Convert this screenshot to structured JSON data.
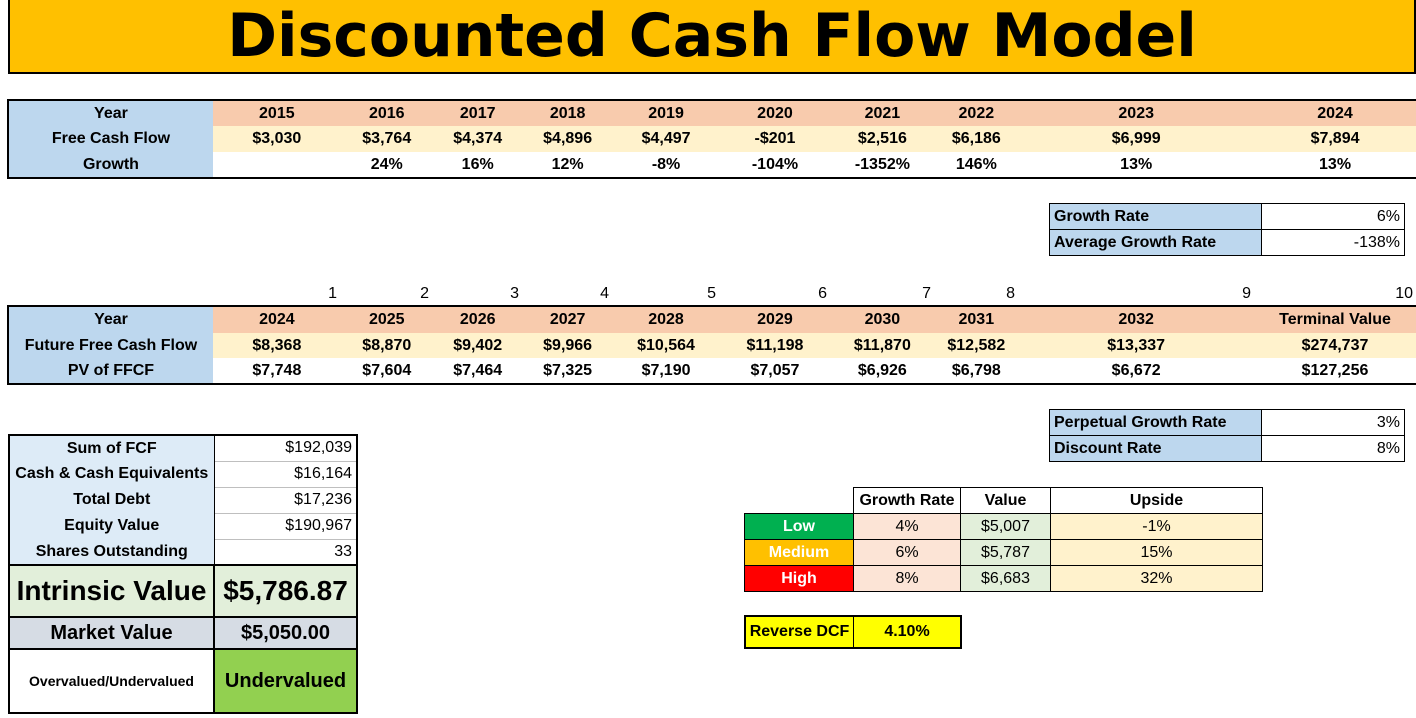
{
  "title": "Discounted Cash Flow Model",
  "historical": {
    "year_label": "Year",
    "fcf_label": "Free Cash Flow",
    "growth_label": "Growth",
    "years": [
      "2015",
      "2016",
      "2017",
      "2018",
      "2019",
      "2020",
      "2021",
      "2022",
      "2023",
      "2024"
    ],
    "fcf": [
      "$3,030",
      "$3,764",
      "$4,374",
      "$4,896",
      "$4,497",
      "-$201",
      "$2,516",
      "$6,186",
      "$6,999",
      "$7,894"
    ],
    "growth": [
      "",
      "24%",
      "16%",
      "12%",
      "-8%",
      "-104%",
      "-1352%",
      "146%",
      "13%",
      "13%"
    ]
  },
  "growth_box": {
    "growth_rate_label": "Growth Rate",
    "growth_rate": "6%",
    "avg_growth_label": "Average Growth Rate",
    "avg_growth": "-138%"
  },
  "projection": {
    "indices": [
      "1",
      "2",
      "3",
      "4",
      "5",
      "6",
      "7",
      "8",
      "9",
      "10"
    ],
    "year_label": "Year",
    "ffcf_label": "Future Free Cash Flow",
    "pv_label": "PV of FFCF",
    "years": [
      "2024",
      "2025",
      "2026",
      "2027",
      "2028",
      "2029",
      "2030",
      "2031",
      "2032",
      "Terminal Value"
    ],
    "ffcf": [
      "$8,368",
      "$8,870",
      "$9,402",
      "$9,966",
      "$10,564",
      "$11,198",
      "$11,870",
      "$12,582",
      "$13,337",
      "$274,737"
    ],
    "pv": [
      "$7,748",
      "$7,604",
      "$7,464",
      "$7,325",
      "$7,190",
      "$7,057",
      "$6,926",
      "$6,798",
      "$6,672",
      "$127,256"
    ]
  },
  "rates_box": {
    "perpetual_label": "Perpetual Growth Rate",
    "perpetual": "3%",
    "discount_label": "Discount Rate",
    "discount": "8%"
  },
  "summary": {
    "sum_fcf_label": "Sum of FCF",
    "sum_fcf": "$192,039",
    "cash_label": "Cash & Cash Equivalents",
    "cash": "$16,164",
    "debt_label": "Total Debt",
    "debt": "$17,236",
    "equity_label": "Equity Value",
    "equity": "$190,967",
    "shares_label": "Shares Outstanding",
    "shares": "33",
    "intrinsic_label": "Intrinsic Value",
    "intrinsic": "$5,786.87",
    "market_label": "Market Value",
    "market": "$5,050.00",
    "verdict_label": "Overvalued/Undervalued",
    "verdict": "Undervalued"
  },
  "scenarios": {
    "headers": [
      "Growth Rate",
      "Value",
      "Upside"
    ],
    "rows": [
      {
        "name": "Low",
        "growth": "4%",
        "value": "$5,007",
        "upside": "-1%"
      },
      {
        "name": "Medium",
        "growth": "6%",
        "value": "$5,787",
        "upside": "15%"
      },
      {
        "name": "High",
        "growth": "8%",
        "value": "$6,683",
        "upside": "32%"
      }
    ]
  },
  "reverse_dcf": {
    "label": "Reverse DCF",
    "value": "4.10%"
  },
  "colors": {
    "title_bg": "#ffc000",
    "header_blue": "#bdd7ee",
    "header_peach": "#f8cbad",
    "row_cream": "#fff2cc",
    "undervalued_green": "#92d050",
    "low_green": "#00b050",
    "medium_orange": "#ffc000",
    "high_red": "#ff0000",
    "reverse_yellow": "#ffff00"
  }
}
